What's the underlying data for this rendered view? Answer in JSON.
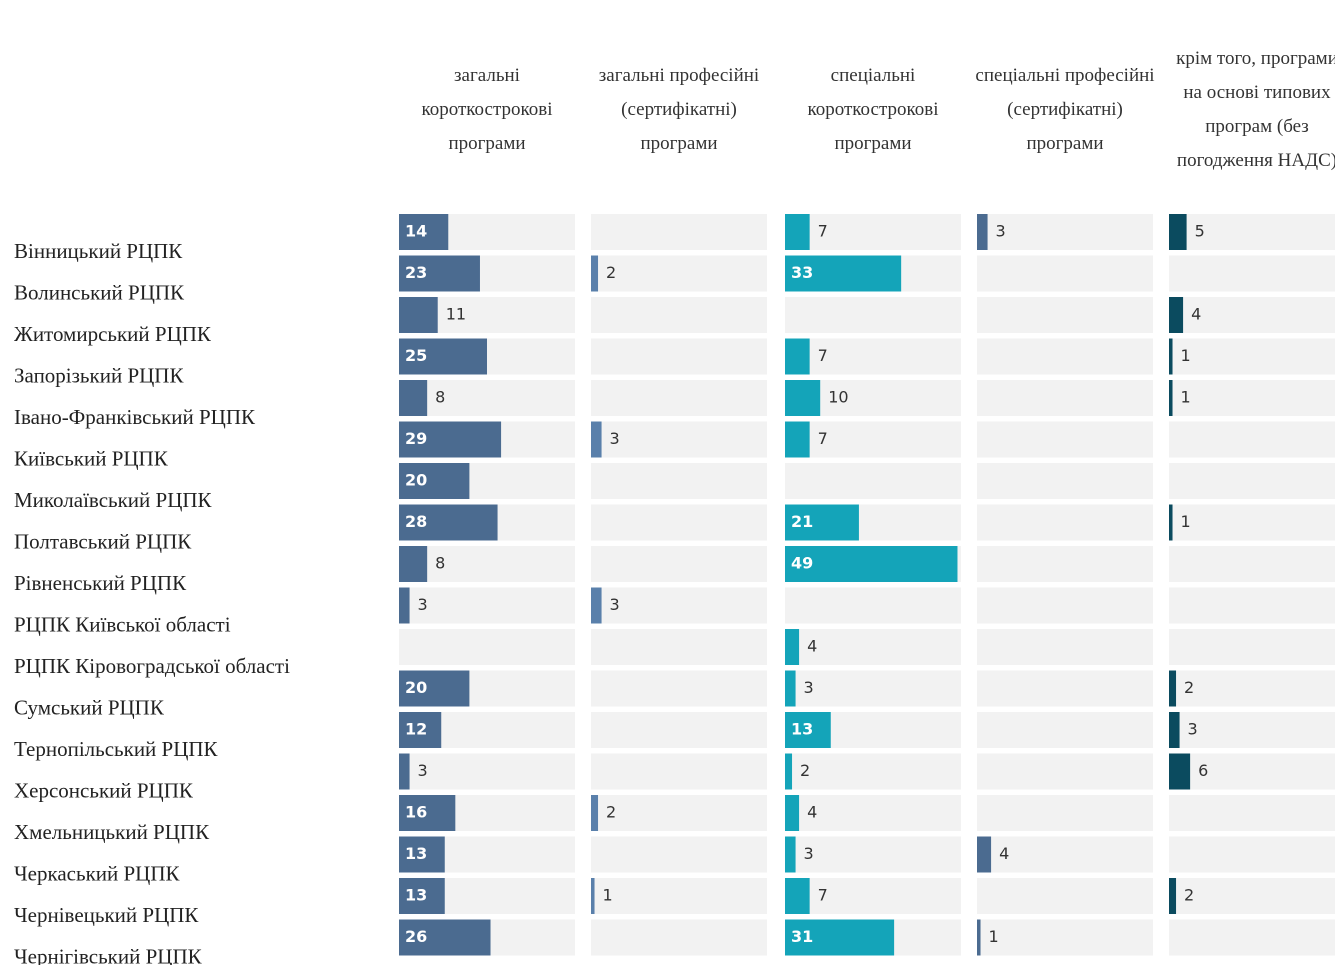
{
  "chart_data": {
    "type": "bar",
    "orientation": "horizontal",
    "categories": [
      "Вінницький РЦПК",
      "Волинський РЦПК",
      "Житомирський РЦПК",
      "Запорізький РЦПК",
      "Івано-Франківський РЦПК",
      "Київський РЦПК",
      "Миколаївський РЦПК",
      "Полтавський РЦПК",
      "Рівненський РЦПК",
      "РЦПК Київської області",
      "РЦПК Кіровоградської області",
      "Сумський РЦПК",
      "Тернопільський РЦПК",
      "Херсонський РЦПК",
      "Хмельницький РЦПК",
      "Черкаський РЦПК",
      "Чернівецький РЦПК",
      "Чернігівський РЦПК"
    ],
    "xlim": [
      0,
      50
    ],
    "series": [
      {
        "name": "загальні короткострокові програми",
        "color": "#4b6b90",
        "values": [
          14,
          23,
          11,
          25,
          8,
          29,
          20,
          28,
          8,
          3,
          null,
          20,
          12,
          3,
          16,
          13,
          13,
          26
        ]
      },
      {
        "name": "загальні професійні (сертифікатні) програми",
        "color": "#5a80ab",
        "values": [
          null,
          2,
          null,
          null,
          null,
          3,
          null,
          null,
          null,
          3,
          null,
          null,
          null,
          null,
          2,
          null,
          1,
          null
        ]
      },
      {
        "name": "спеціальні короткострокові програми",
        "color": "#14a4b9",
        "values": [
          7,
          33,
          null,
          7,
          10,
          7,
          null,
          21,
          49,
          null,
          4,
          3,
          13,
          2,
          4,
          3,
          7,
          31
        ]
      },
      {
        "name": "спеціальні професійні (сертифікатні) програми",
        "color": "#4b6b90",
        "values": [
          3,
          null,
          null,
          null,
          null,
          null,
          null,
          null,
          null,
          null,
          null,
          null,
          null,
          null,
          null,
          4,
          null,
          1
        ]
      },
      {
        "name": "крім того, програми на основі типових програм (без погодження НАДС)",
        "color": "#0b4b5f",
        "values": [
          5,
          null,
          4,
          1,
          1,
          null,
          null,
          1,
          null,
          null,
          null,
          2,
          3,
          6,
          null,
          null,
          2,
          null
        ]
      }
    ]
  }
}
